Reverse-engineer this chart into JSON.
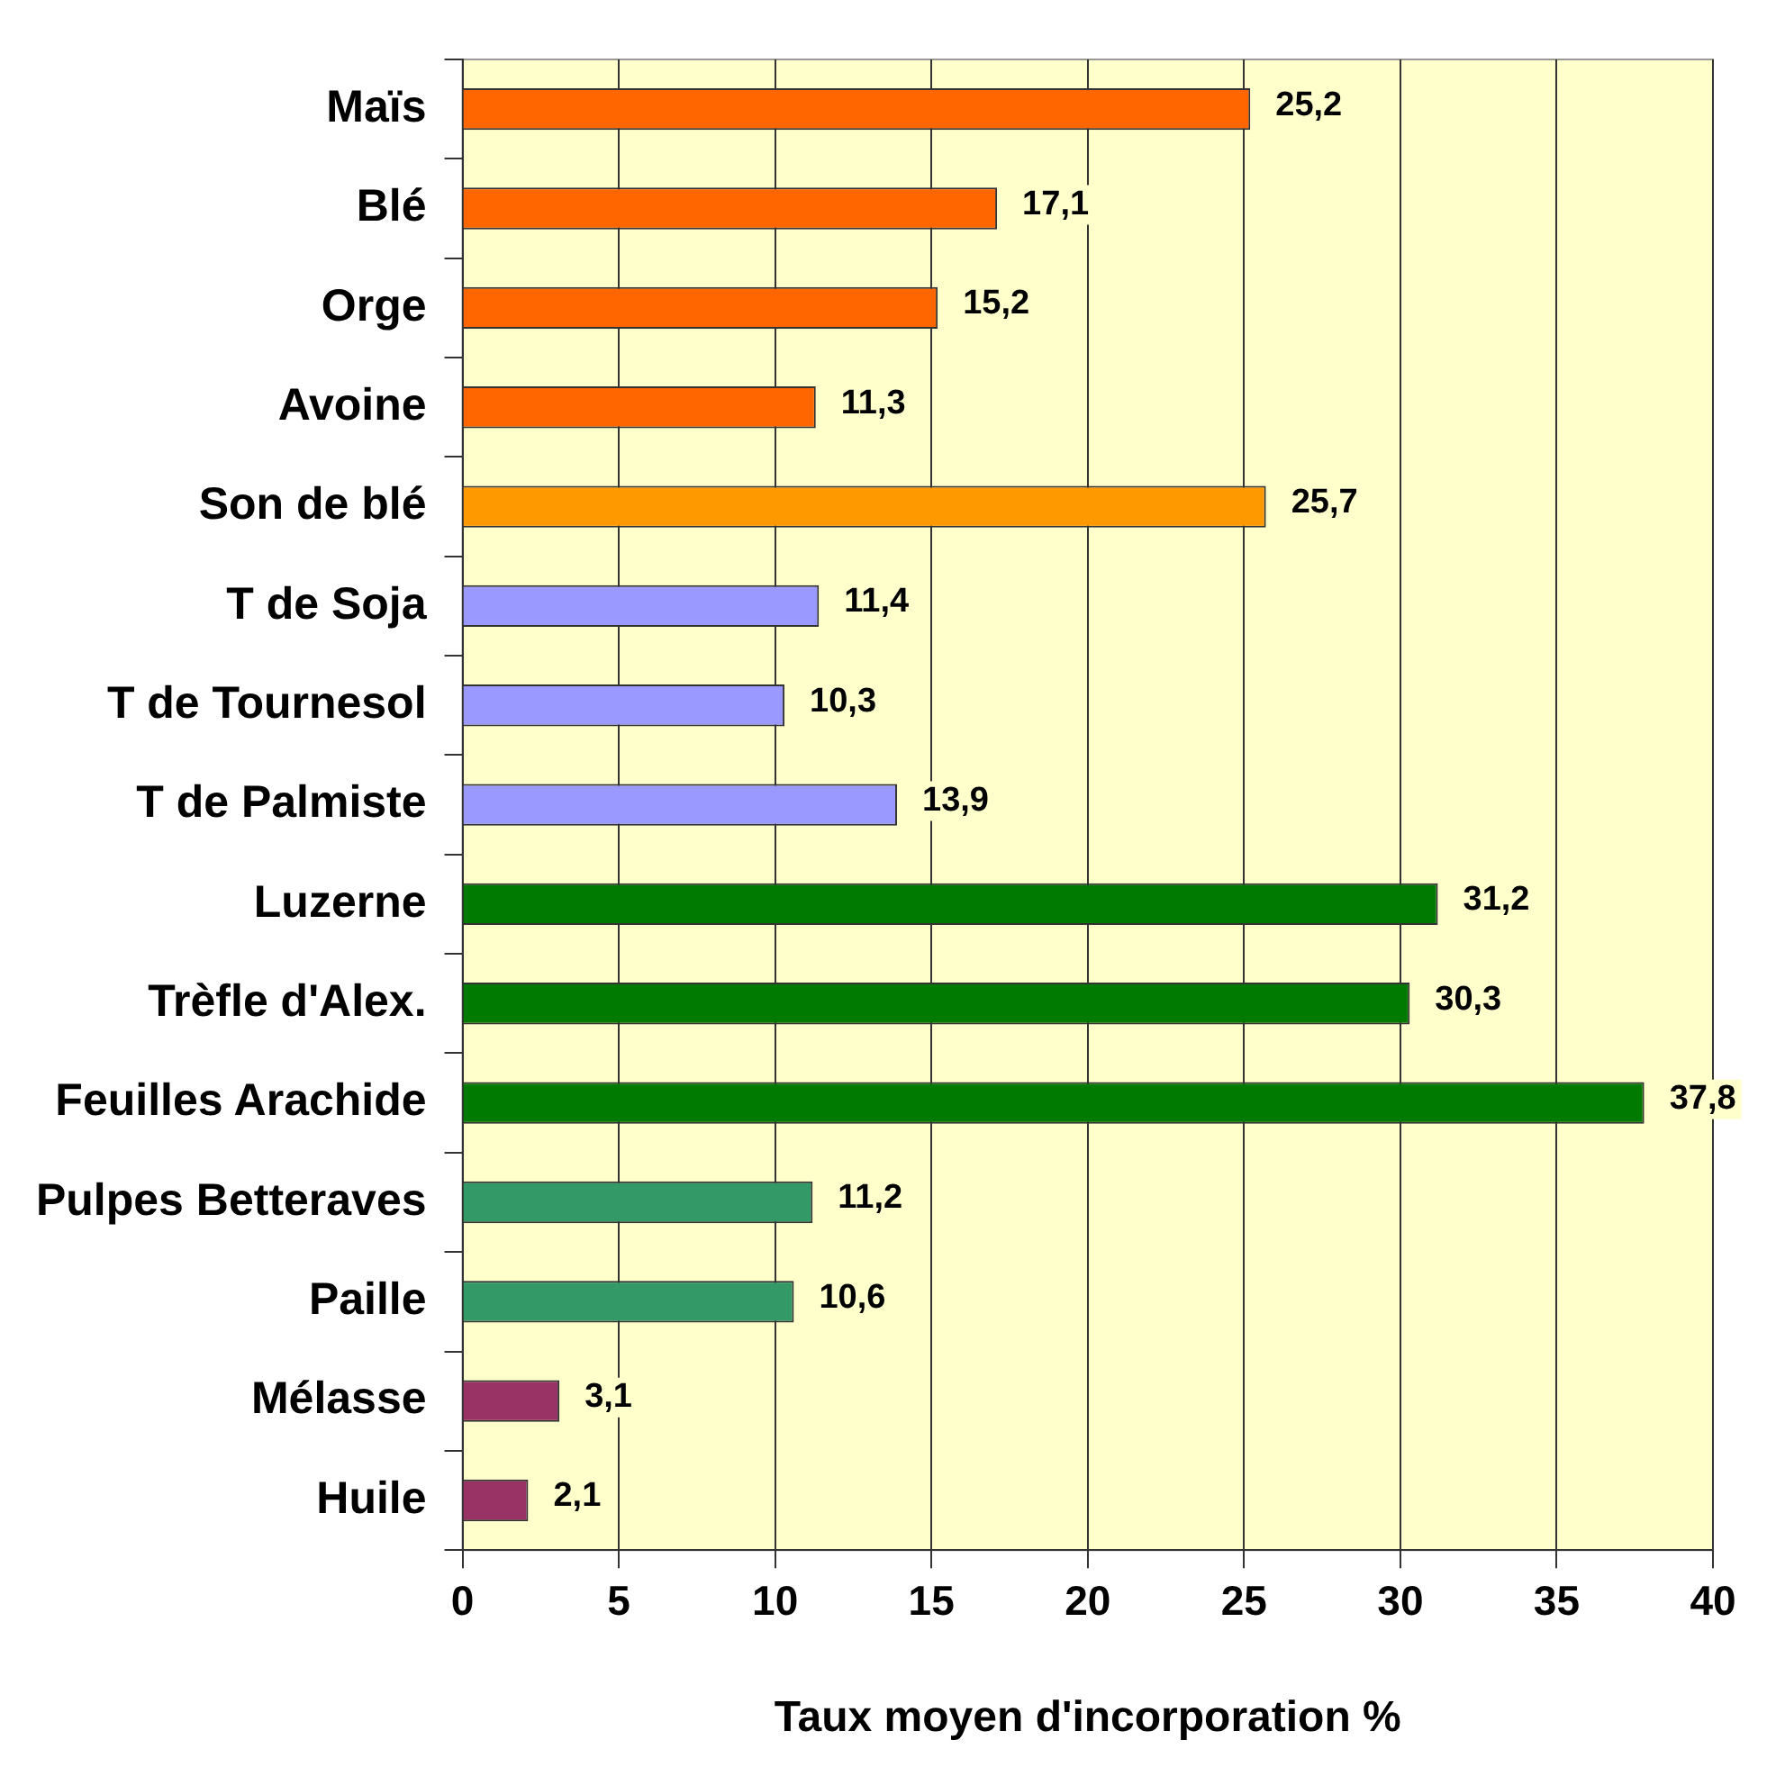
{
  "chart_data": {
    "type": "bar",
    "orientation": "horizontal",
    "xlabel": "Taux moyen d'incorporation %",
    "categories": [
      "Maïs",
      "Blé",
      "Orge",
      "Avoine",
      "Son de blé",
      "T de Soja",
      "T de Tournesol",
      "T de Palmiste",
      "Luzerne",
      "Trèfle d'Alex.",
      "Feuilles Arachide",
      "Pulpes Betteraves",
      "Paille",
      "Mélasse",
      "Huile"
    ],
    "values": [
      25.2,
      17.1,
      15.2,
      11.3,
      25.7,
      11.4,
      10.3,
      13.9,
      31.2,
      30.3,
      37.8,
      11.2,
      10.6,
      3.1,
      2.1
    ],
    "value_labels": [
      "25,2",
      "17,1",
      "15,2",
      "11,3",
      "25,7",
      "11,4",
      "10,3",
      "13,9",
      "31,2",
      "30,3",
      "37,8",
      "11,2",
      "10,6",
      "3,1",
      "2,1"
    ],
    "colors": [
      "#ff6600",
      "#ff6600",
      "#ff6600",
      "#ff6600",
      "#ff9900",
      "#9999ff",
      "#9999ff",
      "#9999ff",
      "#007a00",
      "#007a00",
      "#007a00",
      "#339966",
      "#339966",
      "#993366",
      "#993366"
    ],
    "xlim": [
      0,
      40
    ],
    "xticks": [
      0,
      5,
      10,
      15,
      20,
      25,
      30,
      35,
      40
    ],
    "grid": "x",
    "legend": false
  }
}
